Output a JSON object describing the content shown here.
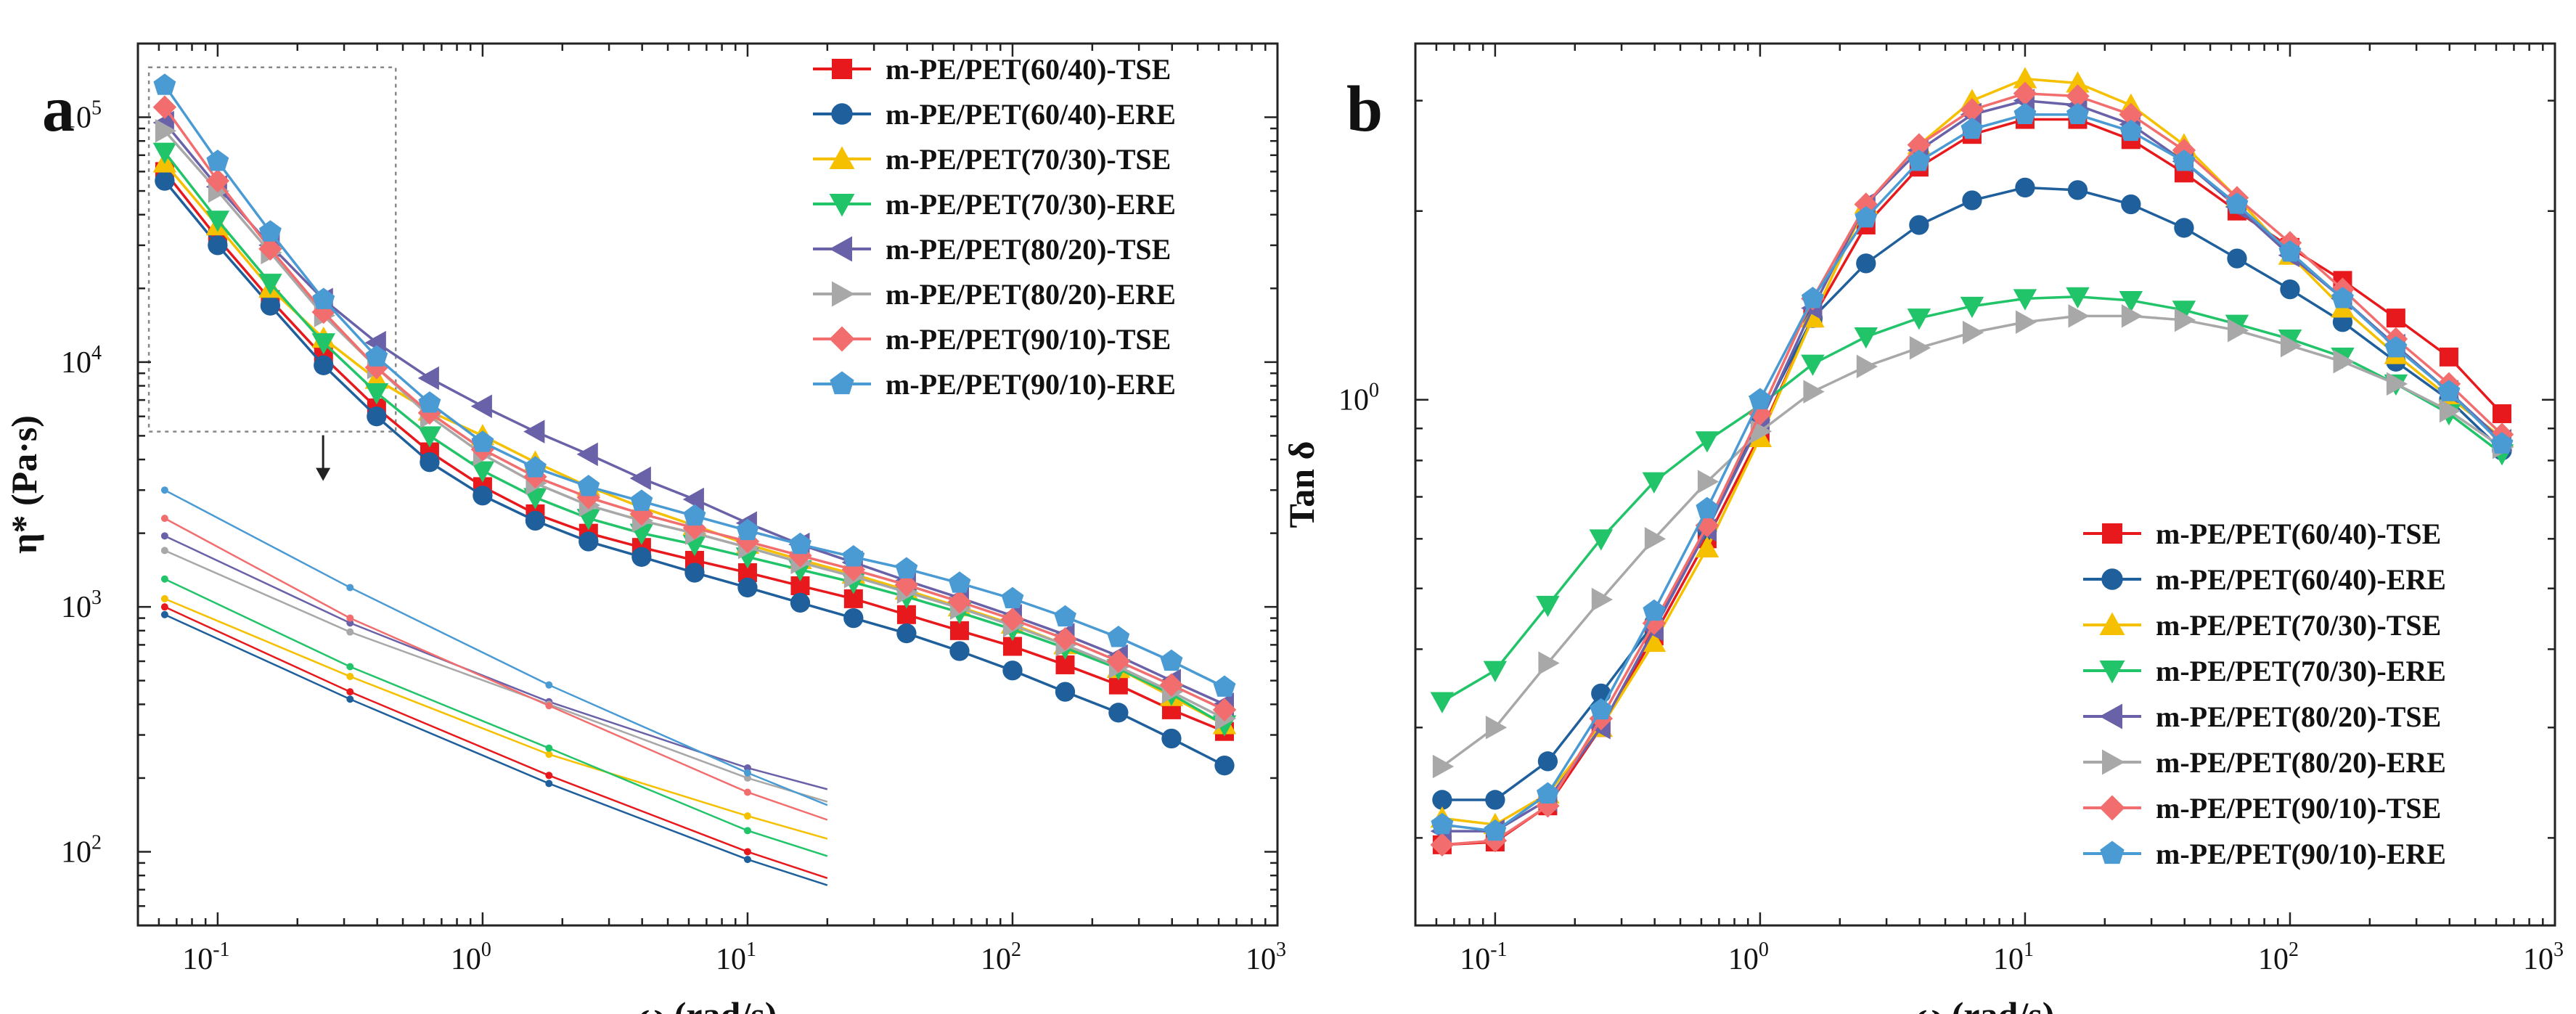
{
  "series_styles": [
    {
      "name": "m-PE/PET(60/40)-TSE",
      "color": "#e8191c",
      "marker": "square"
    },
    {
      "name": "m-PE/PET(60/40)-ERE",
      "color": "#1e5f9c",
      "marker": "circle"
    },
    {
      "name": "m-PE/PET(70/30)-TSE",
      "color": "#f5c000",
      "marker": "triangle-up"
    },
    {
      "name": "m-PE/PET(70/30)-ERE",
      "color": "#22c46a",
      "marker": "triangle-down"
    },
    {
      "name": "m-PE/PET(80/20)-TSE",
      "color": "#6a62a8",
      "marker": "triangle-left"
    },
    {
      "name": "m-PE/PET(80/20)-ERE",
      "color": "#a8a8a8",
      "marker": "triangle-right"
    },
    {
      "name": "m-PE/PET(90/10)-TSE",
      "color": "#f26e6e",
      "marker": "diamond"
    },
    {
      "name": "m-PE/PET(90/10)-ERE",
      "color": "#4a9ad4",
      "marker": "pentagon"
    }
  ],
  "chart_data": [
    {
      "type": "line",
      "panel": "a",
      "xscale": "log",
      "yscale": "log",
      "xlabel": "ω (rad/s)",
      "ylabel": "η* (Pa·s)",
      "xlim": [
        0.05,
        1000
      ],
      "ylim": [
        50,
        200000
      ],
      "xticks": [
        {
          "v": 0.1,
          "b": "10",
          "e": "-1"
        },
        {
          "v": 1,
          "b": "10",
          "e": "0"
        },
        {
          "v": 10,
          "b": "10",
          "e": "1"
        },
        {
          "v": 100,
          "b": "10",
          "e": "2"
        },
        {
          "v": 1000,
          "b": "10",
          "e": "3"
        }
      ],
      "yticks": [
        {
          "v": 100,
          "b": "10",
          "e": "2"
        },
        {
          "v": 1000,
          "b": "10",
          "e": "3"
        },
        {
          "v": 10000,
          "b": "10",
          "e": "4"
        },
        {
          "v": 100000,
          "b": "10",
          "e": "5"
        }
      ],
      "legend_position": "top-right",
      "x": [
        0.0631,
        0.1,
        0.158,
        0.251,
        0.398,
        0.631,
        1,
        1.58,
        2.51,
        3.98,
        6.31,
        10,
        15.8,
        25.1,
        39.8,
        63.1,
        100,
        158,
        251,
        398,
        631
      ],
      "series": [
        {
          "name": "m-PE/PET(60/40)-TSE",
          "values": [
            60000,
            32000,
            18000,
            10500,
            6500,
            4300,
            3100,
            2400,
            2000,
            1750,
            1550,
            1380,
            1220,
            1080,
            930,
            800,
            690,
            580,
            480,
            380,
            310
          ]
        },
        {
          "name": "m-PE/PET(60/40)-ERE",
          "values": [
            55000,
            30000,
            17000,
            9700,
            6000,
            3900,
            2850,
            2250,
            1850,
            1600,
            1380,
            1200,
            1040,
            900,
            780,
            660,
            550,
            450,
            370,
            290,
            225
          ]
        },
        {
          "name": "m-PE/PET(70/30)-TSE",
          "values": [
            65000,
            36000,
            20000,
            12500,
            8500,
            6300,
            5000,
            3900,
            3100,
            2550,
            2150,
            1800,
            1560,
            1360,
            1170,
            1000,
            850,
            700,
            560,
            430,
            330
          ]
        },
        {
          "name": "m-PE/PET(70/30)-ERE",
          "values": [
            72000,
            38000,
            21000,
            12000,
            7500,
            5000,
            3600,
            2800,
            2300,
            2000,
            1800,
            1600,
            1420,
            1260,
            1100,
            950,
            810,
            680,
            560,
            440,
            330
          ]
        },
        {
          "name": "m-PE/PET(80/20)-TSE",
          "values": [
            95000,
            52000,
            30000,
            18000,
            12000,
            8600,
            6600,
            5200,
            4200,
            3350,
            2750,
            2200,
            1800,
            1520,
            1280,
            1090,
            920,
            770,
            630,
            500,
            400
          ]
        },
        {
          "name": "m-PE/PET(80/20)-ERE",
          "values": [
            88000,
            50000,
            28000,
            15500,
            9500,
            6000,
            4200,
            3200,
            2600,
            2250,
            2000,
            1750,
            1520,
            1330,
            1150,
            990,
            840,
            700,
            570,
            450,
            350
          ]
        },
        {
          "name": "m-PE/PET(90/10)-TSE",
          "values": [
            110000,
            55000,
            29000,
            16000,
            9500,
            6200,
            4400,
            3400,
            2800,
            2400,
            2100,
            1850,
            1620,
            1420,
            1230,
            1050,
            890,
            740,
            600,
            480,
            380
          ]
        },
        {
          "name": "m-PE/PET(90/10)-ERE",
          "values": [
            135000,
            66000,
            34000,
            18000,
            10500,
            6800,
            4700,
            3700,
            3100,
            2700,
            2350,
            2050,
            1800,
            1600,
            1430,
            1250,
            1080,
            910,
            750,
            600,
            470
          ]
        }
      ]
    },
    {
      "type": "line",
      "panel": "b",
      "xscale": "log",
      "yscale": "log",
      "xlabel": "ω (rad/s)",
      "ylabel": "Tan  δ",
      "xlim": [
        0.05,
        1000
      ],
      "ylim": [
        0.145,
        3.7
      ],
      "xticks": [
        {
          "v": 0.1,
          "b": "10",
          "e": "-1"
        },
        {
          "v": 1,
          "b": "10",
          "e": "0"
        },
        {
          "v": 10,
          "b": "10",
          "e": "1"
        },
        {
          "v": 100,
          "b": "10",
          "e": "2"
        },
        {
          "v": 1000,
          "b": "10",
          "e": "3"
        }
      ],
      "yticks": [
        {
          "v": 1,
          "b": "10",
          "e": "0"
        }
      ],
      "legend_position": "bottom-right",
      "x": [
        0.0631,
        0.1,
        0.158,
        0.251,
        0.398,
        0.631,
        1,
        1.58,
        2.51,
        3.98,
        6.31,
        10,
        15.8,
        25.1,
        39.8,
        63.1,
        100,
        158,
        251,
        398,
        631
      ],
      "series": [
        {
          "name": "m-PE/PET(60/40)-TSE",
          "values": [
            0.195,
            0.197,
            0.225,
            0.3,
            0.42,
            0.6,
            0.88,
            1.35,
            1.9,
            2.35,
            2.65,
            2.8,
            2.8,
            2.6,
            2.3,
            2.0,
            1.75,
            1.55,
            1.35,
            1.17,
            0.95
          ]
        },
        {
          "name": "m-PE/PET(60/40)-ERE",
          "values": [
            0.23,
            0.23,
            0.265,
            0.34,
            0.44,
            0.62,
            0.93,
            1.35,
            1.65,
            1.9,
            2.08,
            2.18,
            2.16,
            2.05,
            1.88,
            1.68,
            1.5,
            1.33,
            1.15,
            1.0,
            0.83
          ]
        },
        {
          "name": "m-PE/PET(70/30)-TSE",
          "values": [
            0.215,
            0.21,
            0.235,
            0.3,
            0.41,
            0.58,
            0.87,
            1.35,
            2.05,
            2.55,
            3.0,
            3.25,
            3.2,
            2.95,
            2.55,
            2.1,
            1.7,
            1.4,
            1.18,
            1.01,
            0.87
          ]
        },
        {
          "name": "m-PE/PET(70/30)-ERE",
          "values": [
            0.33,
            0.37,
            0.47,
            0.6,
            0.74,
            0.86,
            0.98,
            1.14,
            1.26,
            1.35,
            1.41,
            1.45,
            1.46,
            1.44,
            1.39,
            1.32,
            1.25,
            1.17,
            1.06,
            0.95,
            0.82
          ]
        },
        {
          "name": "m-PE/PET(80/20)-TSE",
          "values": [
            0.205,
            0.205,
            0.23,
            0.3,
            0.43,
            0.62,
            0.92,
            1.4,
            2.05,
            2.5,
            2.85,
            3.0,
            2.95,
            2.75,
            2.4,
            2.03,
            1.7,
            1.45,
            1.22,
            1.03,
            0.86
          ]
        },
        {
          "name": "m-PE/PET(80/20)-ERE",
          "values": [
            0.26,
            0.3,
            0.38,
            0.48,
            0.6,
            0.74,
            0.89,
            1.03,
            1.13,
            1.21,
            1.28,
            1.33,
            1.36,
            1.36,
            1.34,
            1.29,
            1.22,
            1.15,
            1.06,
            0.96,
            0.84
          ]
        },
        {
          "name": "m-PE/PET(90/10)-TSE",
          "values": [
            0.195,
            0.198,
            0.225,
            0.31,
            0.44,
            0.63,
            0.95,
            1.45,
            2.05,
            2.55,
            2.9,
            3.08,
            3.05,
            2.85,
            2.5,
            2.1,
            1.78,
            1.5,
            1.25,
            1.06,
            0.88
          ]
        },
        {
          "name": "m-PE/PET(90/10)-ERE",
          "values": [
            0.21,
            0.205,
            0.235,
            0.32,
            0.46,
            0.67,
            1.0,
            1.45,
            1.95,
            2.4,
            2.7,
            2.85,
            2.85,
            2.68,
            2.4,
            2.05,
            1.72,
            1.45,
            1.21,
            1.03,
            0.85
          ]
        }
      ]
    }
  ],
  "inset": {
    "x": [
      0.0631,
      0.316,
      1.78,
      10,
      20
    ],
    "series": [
      {
        "name": "m-PE/PET(60/40)-TSE",
        "values": [
          1000,
          450,
          205,
          100,
          78
        ]
      },
      {
        "name": "m-PE/PET(60/40)-ERE",
        "values": [
          930,
          420,
          190,
          93,
          73
        ]
      },
      {
        "name": "m-PE/PET(70/30)-TSE",
        "values": [
          1080,
          520,
          250,
          140,
          113
        ]
      },
      {
        "name": "m-PE/PET(70/30)-ERE",
        "values": [
          1300,
          570,
          265,
          122,
          96
        ]
      },
      {
        "name": "m-PE/PET(80/20)-TSE",
        "values": [
          1950,
          860,
          410,
          220,
          180
        ]
      },
      {
        "name": "m-PE/PET(80/20)-ERE",
        "values": [
          1700,
          790,
          400,
          200,
          160
        ]
      },
      {
        "name": "m-PE/PET(90/10)-TSE",
        "values": [
          2300,
          900,
          395,
          175,
          135
        ]
      },
      {
        "name": "m-PE/PET(90/10)-ERE",
        "values": [
          3000,
          1200,
          480,
          210,
          155
        ]
      }
    ]
  }
}
